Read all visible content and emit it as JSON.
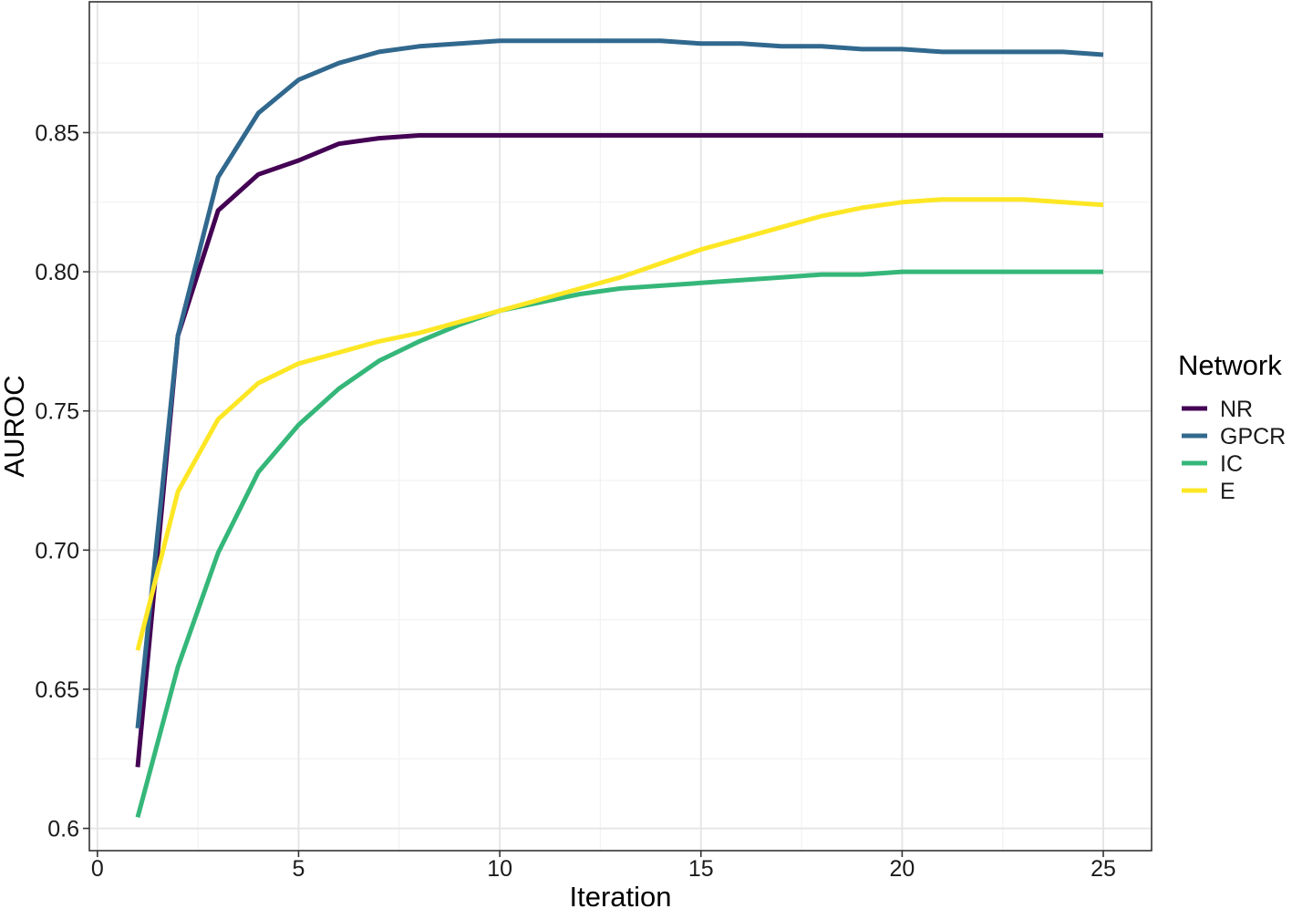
{
  "chart_data": {
    "type": "line",
    "xlabel": "Iteration",
    "ylabel": "AUROC",
    "xlim": [
      -0.2,
      26.2
    ],
    "ylim": [
      0.592,
      0.897
    ],
    "x_ticks": [
      0,
      5,
      10,
      15,
      20,
      25
    ],
    "x_tick_labels": [
      "0",
      "5",
      "10",
      "15",
      "20",
      "25"
    ],
    "y_ticks": [
      0.6,
      0.65,
      0.7,
      0.75,
      0.8,
      0.85
    ],
    "y_tick_labels": [
      "0.6",
      "0.65",
      "0.70",
      "0.75",
      "0.80",
      "0.85"
    ],
    "grid": true,
    "legend": {
      "title": "Network",
      "placement": "right",
      "entries": [
        "NR",
        "GPCR",
        "IC",
        "E"
      ]
    },
    "x": [
      1,
      2,
      3,
      4,
      5,
      6,
      7,
      8,
      9,
      10,
      11,
      12,
      13,
      14,
      15,
      16,
      17,
      18,
      19,
      20,
      21,
      22,
      23,
      24,
      25
    ],
    "series": [
      {
        "name": "NR",
        "color": "#440154",
        "values": [
          0.622,
          0.777,
          0.822,
          0.835,
          0.84,
          0.846,
          0.848,
          0.849,
          0.849,
          0.849,
          0.849,
          0.849,
          0.849,
          0.849,
          0.849,
          0.849,
          0.849,
          0.849,
          0.849,
          0.849,
          0.849,
          0.849,
          0.849,
          0.849,
          0.849
        ]
      },
      {
        "name": "GPCR",
        "color": "#31688e",
        "values": [
          0.636,
          0.777,
          0.834,
          0.857,
          0.869,
          0.875,
          0.879,
          0.881,
          0.882,
          0.883,
          0.883,
          0.883,
          0.883,
          0.883,
          0.882,
          0.882,
          0.881,
          0.881,
          0.88,
          0.88,
          0.879,
          0.879,
          0.879,
          0.879,
          0.878
        ]
      },
      {
        "name": "IC",
        "color": "#35b779",
        "values": [
          0.604,
          0.658,
          0.699,
          0.728,
          0.745,
          0.758,
          0.768,
          0.775,
          0.781,
          0.786,
          0.789,
          0.792,
          0.794,
          0.795,
          0.796,
          0.797,
          0.798,
          0.799,
          0.799,
          0.8,
          0.8,
          0.8,
          0.8,
          0.8,
          0.8
        ]
      },
      {
        "name": "E",
        "color": "#fde725",
        "values": [
          0.664,
          0.721,
          0.747,
          0.76,
          0.767,
          0.771,
          0.775,
          0.778,
          0.782,
          0.786,
          0.79,
          0.794,
          0.798,
          0.803,
          0.808,
          0.812,
          0.816,
          0.82,
          0.823,
          0.825,
          0.826,
          0.826,
          0.826,
          0.825,
          0.824
        ]
      }
    ]
  }
}
